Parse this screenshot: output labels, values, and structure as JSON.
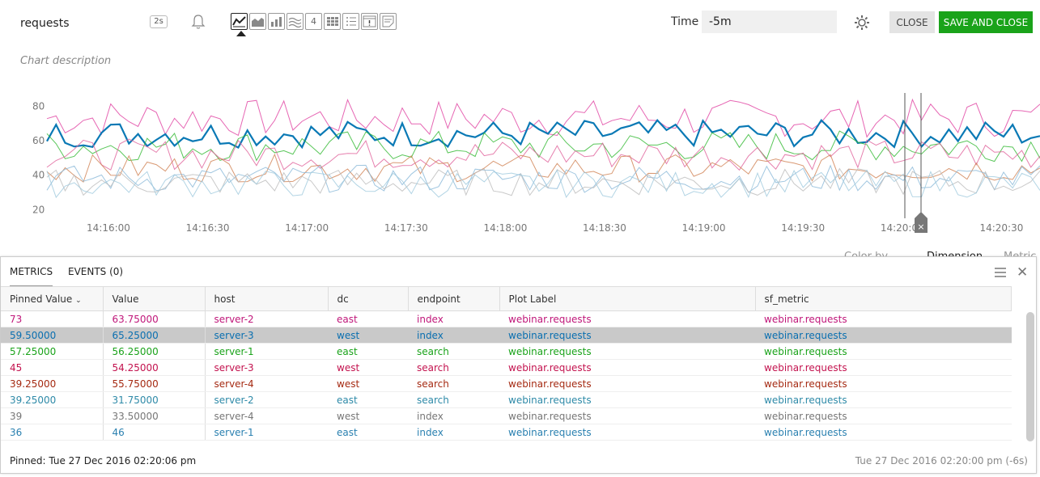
{
  "header": {
    "chart_name": "requests",
    "refresh_badge": "2s",
    "viz_number_label": "4",
    "time_label": "Time",
    "time_value": "-5m",
    "close_label": "CLOSE",
    "save_close_label": "SAVE AND CLOSE",
    "description_placeholder": "Chart description"
  },
  "colors": {
    "pink": "#e040a0",
    "blue": "#0a79b5",
    "green": "#2eb82e",
    "orange": "#d08050",
    "lightblue": "#88b8d8",
    "grey": "#aaa",
    "save": "#1aa31a"
  },
  "chart_data": {
    "type": "line",
    "y_ticks": [
      "80",
      "60",
      "40",
      "20"
    ],
    "x_ticks": [
      "14:16:00",
      "14:16:30",
      "14:17:00",
      "14:17:30",
      "14:18:00",
      "14:18:30",
      "14:19:00",
      "14:19:30",
      "14:20:00",
      "14:20:30"
    ],
    "ylim": [
      15,
      90
    ],
    "series": [
      {
        "name": "server-2 east index",
        "color": "#e040a0",
        "mean": 73,
        "spread": 11
      },
      {
        "name": "server-3 west index",
        "color": "#0a79b5",
        "mean": 64,
        "spread": 8
      },
      {
        "name": "server-1 east search",
        "color": "#2eb82e",
        "mean": 57,
        "spread": 9
      },
      {
        "name": "server-3 west search",
        "color": "#e0609a",
        "mean": 52,
        "spread": 9
      },
      {
        "name": "server-4 west search",
        "color": "#d08050",
        "mean": 44,
        "spread": 8
      },
      {
        "name": "server-2 east search",
        "color": "#88b8d8",
        "mean": 38,
        "spread": 8
      },
      {
        "name": "server-4 west index",
        "color": "#bbbbbb",
        "mean": 36,
        "spread": 8
      },
      {
        "name": "server-1 east index",
        "color": "#9fc9dd",
        "mean": 35,
        "spread": 8
      }
    ]
  },
  "behind_panel": {
    "color_by": "Color by",
    "dimension": "Dimension",
    "metric": "Metric"
  },
  "panel": {
    "tabs": [
      "METRICS",
      "EVENTS (0)"
    ],
    "columns": [
      "Pinned Value",
      "Value",
      "host",
      "dc",
      "endpoint",
      "Plot Label",
      "sf_metric"
    ],
    "rows": [
      {
        "color": "#c0177a",
        "pinned": "73",
        "value": "63.75000",
        "host": "server-2",
        "dc": "east",
        "endpoint": "index",
        "label": "webinar.requests",
        "metric": "webinar.requests"
      },
      {
        "color": "#0a6fb0",
        "pinned": "59.50000",
        "value": "65.25000",
        "host": "server-3",
        "dc": "west",
        "endpoint": "index",
        "label": "webinar.requests",
        "metric": "webinar.requests"
      },
      {
        "color": "#1aa31a",
        "pinned": "57.25000",
        "value": "56.25000",
        "host": "server-1",
        "dc": "east",
        "endpoint": "search",
        "label": "webinar.requests",
        "metric": "webinar.requests"
      },
      {
        "color": "#c3124e",
        "pinned": "45",
        "value": "54.25000",
        "host": "server-3",
        "dc": "west",
        "endpoint": "search",
        "label": "webinar.requests",
        "metric": "webinar.requests"
      },
      {
        "color": "#a52a12",
        "pinned": "39.25000",
        "value": "55.75000",
        "host": "server-4",
        "dc": "west",
        "endpoint": "search",
        "label": "webinar.requests",
        "metric": "webinar.requests"
      },
      {
        "color": "#2e8aa8",
        "pinned": "39.25000",
        "value": "31.75000",
        "host": "server-2",
        "dc": "east",
        "endpoint": "search",
        "label": "webinar.requests",
        "metric": "webinar.requests"
      },
      {
        "color": "#777777",
        "pinned": "39",
        "value": "33.50000",
        "host": "server-4",
        "dc": "west",
        "endpoint": "index",
        "label": "webinar.requests",
        "metric": "webinar.requests"
      },
      {
        "color": "#2a80b0",
        "pinned": "36",
        "value": "46",
        "host": "server-1",
        "dc": "east",
        "endpoint": "index",
        "label": "webinar.requests",
        "metric": "webinar.requests"
      }
    ],
    "pinned_footer": "Pinned: Tue 27 Dec 2016 02:20:06 pm",
    "time_footer": "Tue 27 Dec 2016 02:20:00 pm (-6s)"
  }
}
